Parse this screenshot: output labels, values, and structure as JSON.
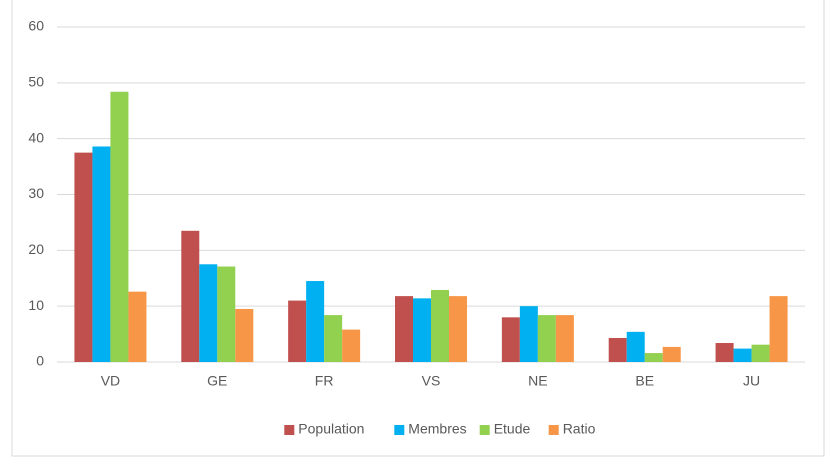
{
  "chart_data": {
    "type": "bar",
    "categories": [
      "VD",
      "GE",
      "FR",
      "VS",
      "NE",
      "BE",
      "JU"
    ],
    "series": [
      {
        "name": "Population",
        "color": "#c0504d",
        "values": [
          37.5,
          23.5,
          11,
          11.8,
          8,
          4.3,
          3.4
        ]
      },
      {
        "name": "Membres",
        "color": "#00b0f0",
        "values": [
          38.6,
          17.5,
          14.5,
          11.4,
          10,
          5.4,
          2.4
        ]
      },
      {
        "name": "Etude",
        "color": "#92d050",
        "values": [
          48.4,
          17.1,
          8.4,
          12.9,
          8.4,
          1.6,
          3.1
        ]
      },
      {
        "name": "Ratio",
        "color": "#f79646",
        "values": [
          12.6,
          9.5,
          5.8,
          11.8,
          8.4,
          2.7,
          11.8
        ]
      }
    ],
    "ylim": [
      0,
      60
    ],
    "yticks": [
      0,
      10,
      20,
      30,
      40,
      50,
      60
    ],
    "grid": true,
    "legend": "bottom"
  }
}
